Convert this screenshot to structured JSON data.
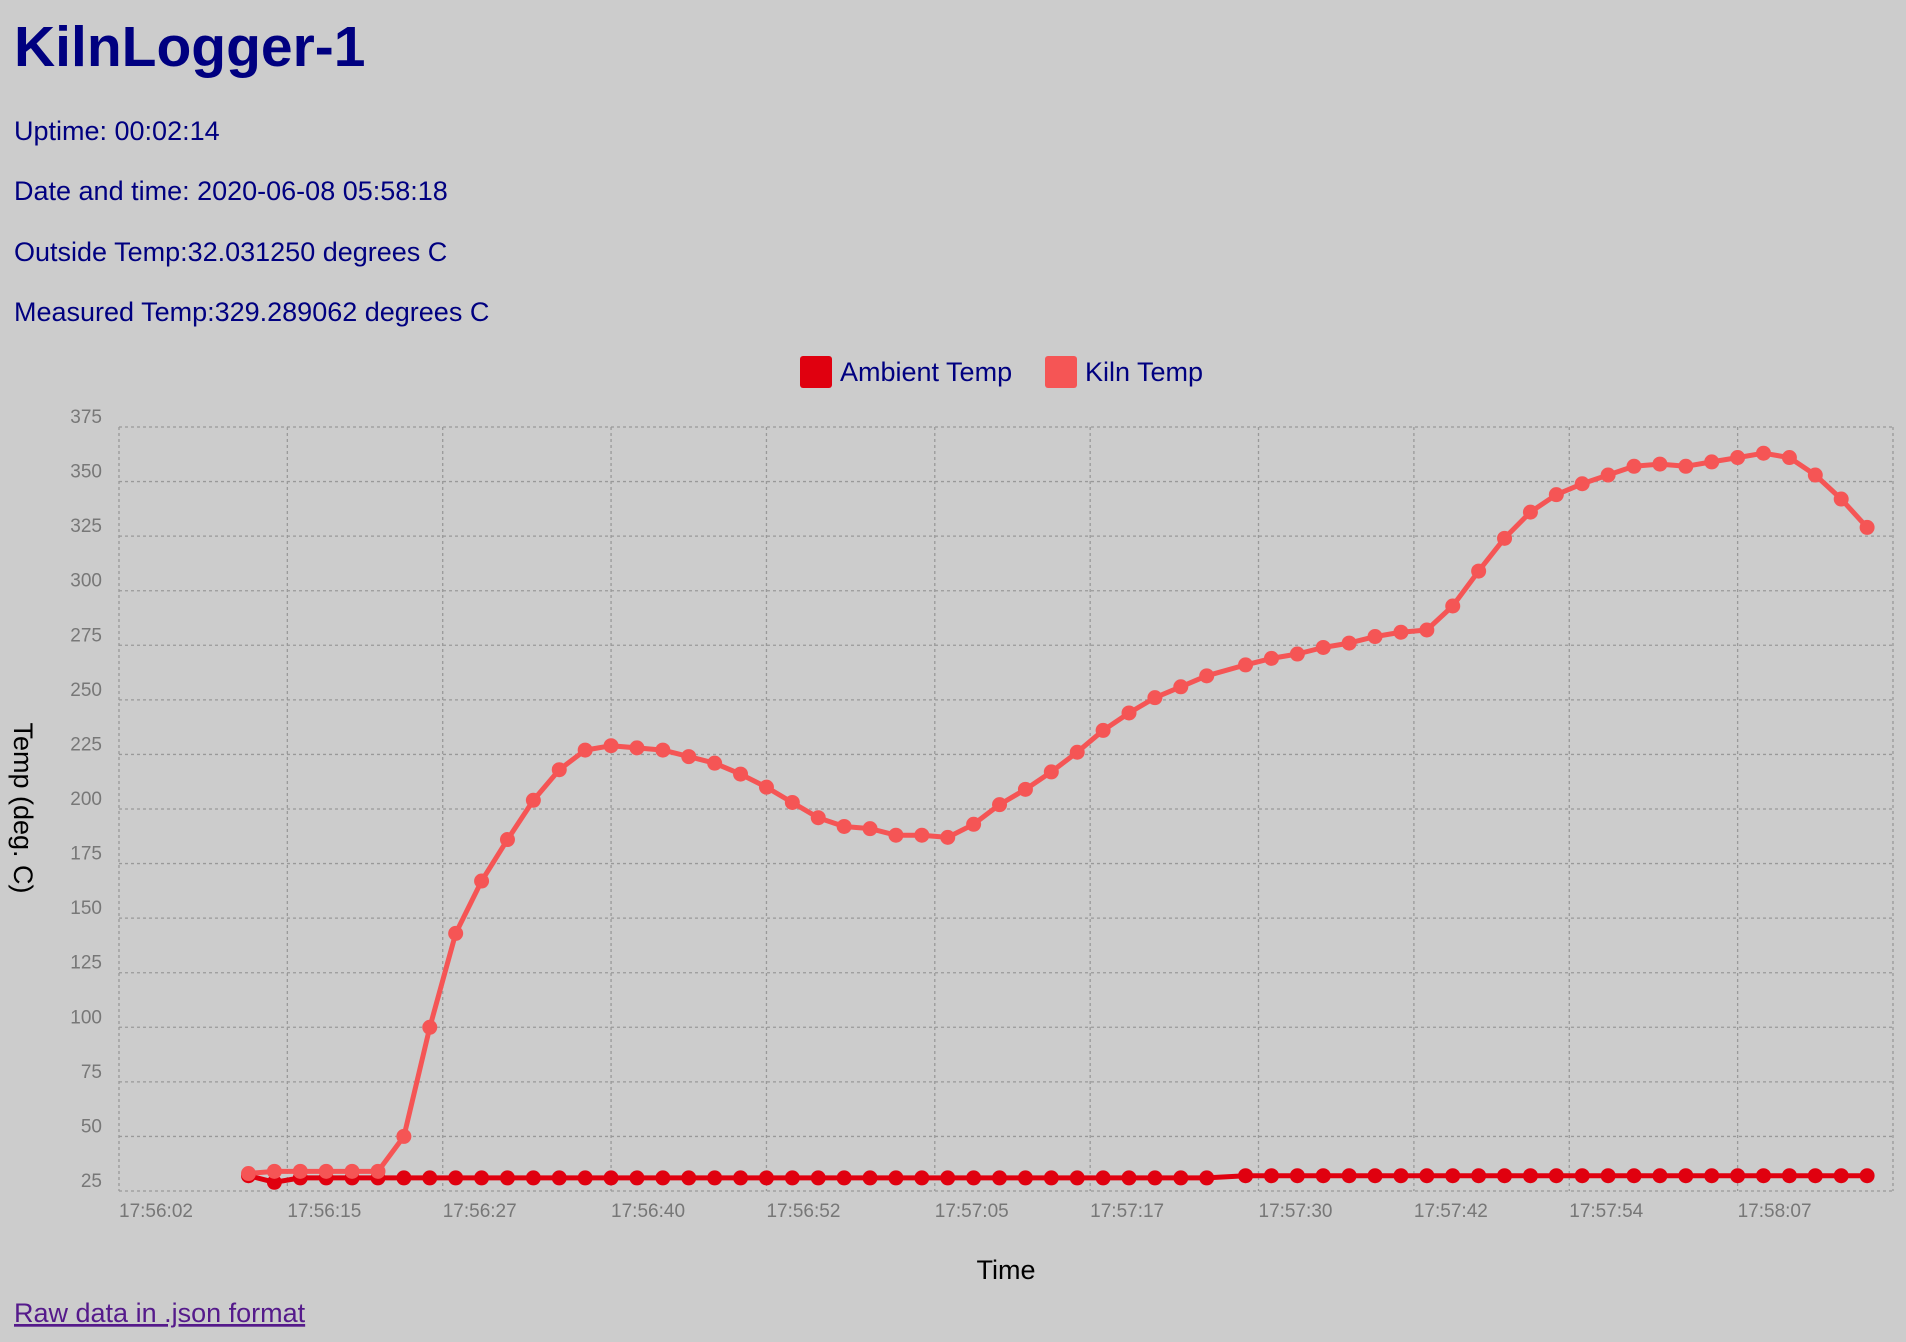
{
  "header": {
    "title": "KilnLogger-1",
    "uptime": "Uptime: 00:02:14",
    "datetime": "Date and time: 2020-06-08 05:58:18",
    "outside": "Outside Temp:32.031250 degrees C",
    "measured": "Measured Temp:329.289062 degrees C"
  },
  "chart_data": {
    "type": "line",
    "xlabel": "Time",
    "ylabel": "Temp (deg. C)",
    "grid": true,
    "x": [
      "17:56:12",
      "17:56:14",
      "17:56:16",
      "17:56:18",
      "17:56:20",
      "17:56:22",
      "17:56:24",
      "17:56:26",
      "17:56:28",
      "17:56:30",
      "17:56:32",
      "17:56:34",
      "17:56:36",
      "17:56:38",
      "17:56:40",
      "17:56:42",
      "17:56:44",
      "17:56:46",
      "17:56:48",
      "17:56:50",
      "17:56:52",
      "17:56:54",
      "17:56:56",
      "17:56:58",
      "17:57:00",
      "17:57:02",
      "17:57:04",
      "17:57:06",
      "17:57:08",
      "17:57:10",
      "17:57:12",
      "17:57:14",
      "17:57:16",
      "17:57:18",
      "17:57:20",
      "17:57:22",
      "17:57:24",
      "17:57:26",
      "17:57:29",
      "17:57:31",
      "17:57:33",
      "17:57:35",
      "17:57:37",
      "17:57:39",
      "17:57:41",
      "17:57:43",
      "17:57:45",
      "17:57:47",
      "17:57:49",
      "17:57:51",
      "17:57:53",
      "17:57:55",
      "17:57:57",
      "17:57:59",
      "17:58:01",
      "17:58:03",
      "17:58:05",
      "17:58:07",
      "17:58:09",
      "17:58:11",
      "17:58:13",
      "17:58:15",
      "17:58:17"
    ],
    "series": [
      {
        "name": "Ambient Temp",
        "color": "#e0000f",
        "values": [
          32,
          29,
          31,
          31,
          31,
          31,
          31,
          31,
          31,
          31,
          31,
          31,
          31,
          31,
          31,
          31,
          31,
          31,
          31,
          31,
          31,
          31,
          31,
          31,
          31,
          31,
          31,
          31,
          31,
          31,
          31,
          31,
          31,
          31,
          31,
          31,
          31,
          31,
          32,
          32,
          32,
          32,
          32,
          32,
          32,
          32,
          32,
          32,
          32,
          32,
          32,
          32,
          32,
          32,
          32,
          32,
          32,
          32,
          32,
          32,
          32,
          32,
          32
        ]
      },
      {
        "name": "Kiln Temp",
        "color": "#f55555",
        "values": [
          33,
          34,
          34,
          34,
          34,
          34,
          50,
          100,
          143,
          167,
          186,
          204,
          218,
          227,
          229,
          228,
          227,
          224,
          221,
          216,
          210,
          203,
          196,
          192,
          191,
          188,
          188,
          187,
          193,
          202,
          209,
          217,
          226,
          236,
          244,
          251,
          256,
          261,
          266,
          269,
          271,
          274,
          276,
          279,
          281,
          282,
          293,
          309,
          324,
          336,
          344,
          349,
          353,
          357,
          358,
          357,
          359,
          361,
          363,
          361,
          353,
          342,
          329
        ]
      }
    ],
    "xlim": [
      "17:56:02",
      "17:58:19"
    ],
    "xticks": [
      "17:56:02",
      "17:56:15",
      "17:56:27",
      "17:56:40",
      "17:56:52",
      "17:57:05",
      "17:57:17",
      "17:57:30",
      "17:57:42",
      "17:57:54",
      "17:58:07"
    ],
    "ylim": [
      25,
      375
    ],
    "yticks": [
      25,
      50,
      75,
      100,
      125,
      150,
      175,
      200,
      225,
      250,
      275,
      300,
      325,
      350,
      375
    ]
  },
  "link": "Raw data in .json format"
}
